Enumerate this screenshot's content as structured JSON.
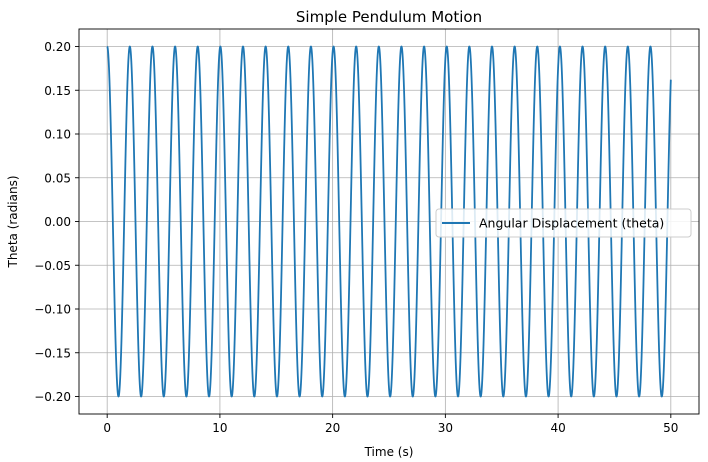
{
  "chart_data": {
    "type": "line",
    "title": "Simple Pendulum Motion",
    "xlabel": "Time (s)",
    "ylabel": "Theta (radians)",
    "xlim": [
      -2.5,
      52.5
    ],
    "ylim": [
      -0.22,
      0.22
    ],
    "x_ticks": [
      0,
      10,
      20,
      30,
      40,
      50
    ],
    "x_tick_labels": [
      "0",
      "10",
      "20",
      "30",
      "40",
      "50"
    ],
    "y_ticks": [
      0.2,
      0.15,
      0.1,
      0.05,
      0.0,
      -0.05,
      -0.1,
      -0.15,
      -0.2
    ],
    "y_tick_labels": [
      "0.20",
      "0.15",
      "0.10",
      "0.05",
      "0.00",
      "−0.05",
      "−0.10",
      "−0.15",
      "−0.20"
    ],
    "grid": true,
    "legend_position": "center-right",
    "series": [
      {
        "name": "Angular Displacement (theta)",
        "color": "#1f77b4",
        "amplitude": 0.2,
        "period_s": 2.008,
        "t_start": 0,
        "t_end": 50
      }
    ]
  }
}
